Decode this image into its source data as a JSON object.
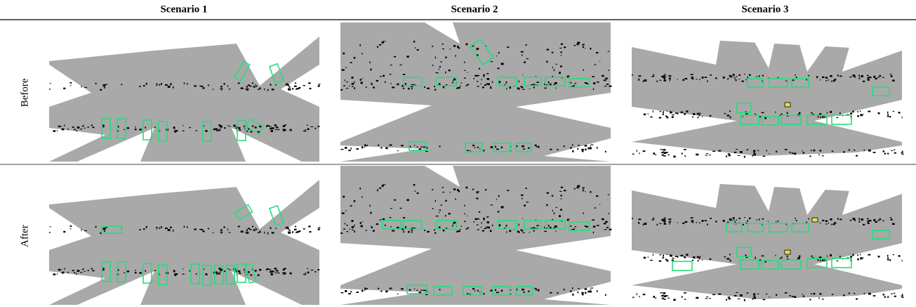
{
  "header": {
    "columns": [
      "Scenario 1",
      "Scenario 2",
      "Scenario 3"
    ]
  },
  "rows": [
    "Before",
    "After"
  ]
}
